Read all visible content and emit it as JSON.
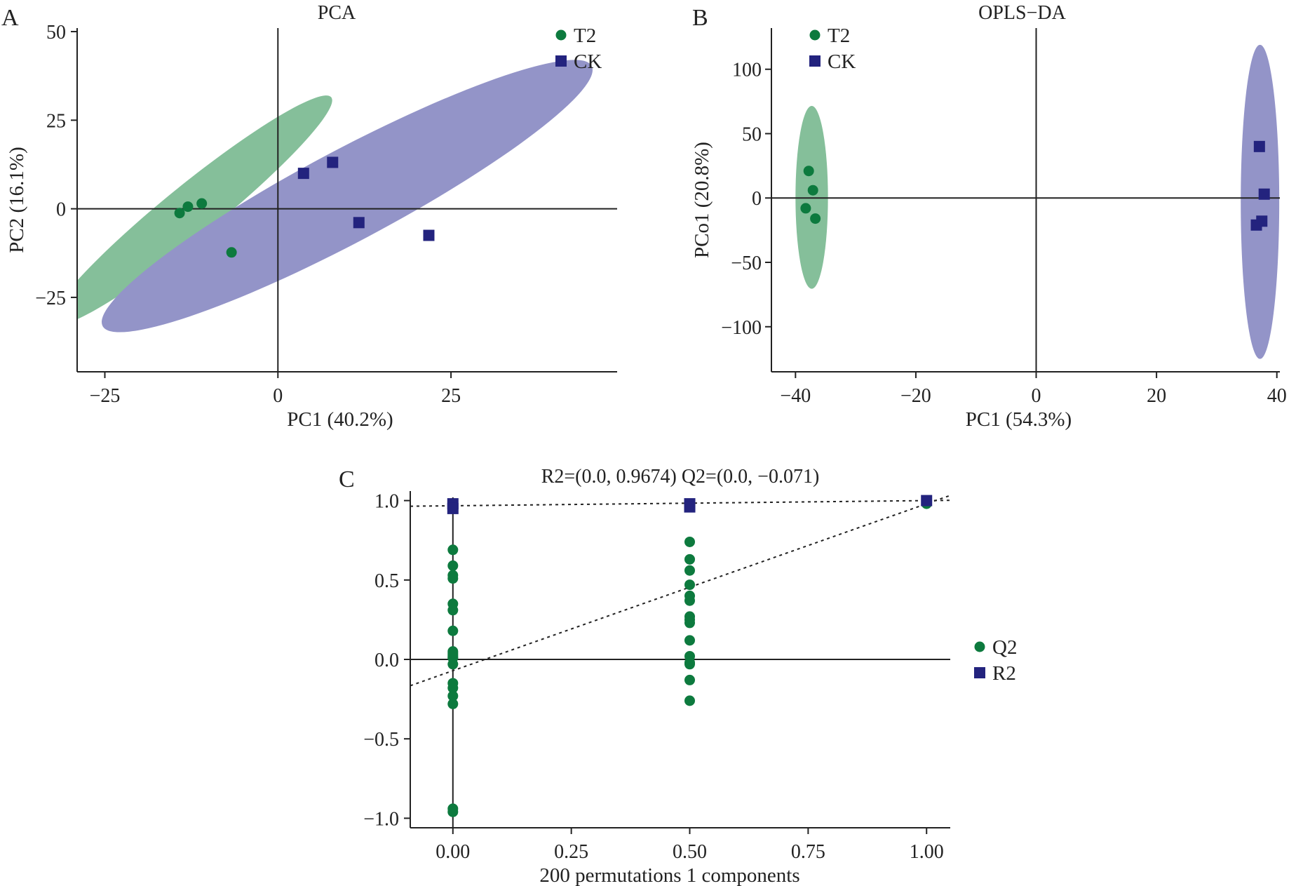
{
  "colors": {
    "t2": "#0d7a3e",
    "ck": "#23237e",
    "t2_ellipse": "#85bf9a",
    "ck_ellipse": "#9394c8"
  },
  "chart_data": [
    {
      "panel": "A",
      "type": "scatter",
      "title": "PCA",
      "xlabel": "PC1 (40.2%)",
      "ylabel": "PC2 (16.1%)",
      "xlim": [
        -29,
        49
      ],
      "ylim": [
        -46,
        51
      ],
      "xticks": [
        -25,
        0,
        25
      ],
      "yticks": [
        -25,
        0,
        25,
        50
      ],
      "zero_lines": true,
      "legend": "top-right",
      "series": [
        {
          "name": "T2",
          "marker": "circle",
          "color": "#0d7a3e",
          "x": [
            -14.2,
            -13,
            -11,
            -6.7
          ],
          "y": [
            -1.2,
            0.6,
            1.5,
            -12.3
          ]
        },
        {
          "name": "CK",
          "marker": "square",
          "color": "#23237e",
          "x": [
            3.7,
            7.9,
            11.7,
            21.8
          ],
          "y": [
            10,
            13.1,
            -3.9,
            -7.5
          ]
        }
      ],
      "confidence_ellipses": [
        {
          "group": "T2",
          "cx": -12.5,
          "cy": -0.5,
          "rx": 26,
          "ry": 7.3,
          "angle_deg": -39,
          "color": "#85bf9a"
        },
        {
          "group": "CK",
          "cx": 10,
          "cy": 3.6,
          "rx": 40,
          "ry": 12.9,
          "angle_deg": -28,
          "color": "#9394c8"
        }
      ]
    },
    {
      "panel": "B",
      "type": "scatter",
      "title": "OPLS−DA",
      "xlabel": "PC1 (54.3%)",
      "ylabel": "PCo1 (20.8%)",
      "xlim": [
        -44,
        40.5
      ],
      "ylim": [
        -135,
        132
      ],
      "xticks": [
        -40,
        -20,
        0,
        20,
        40
      ],
      "yticks": [
        -100,
        -50,
        0,
        50,
        100
      ],
      "zero_lines": true,
      "legend": "top-left",
      "series": [
        {
          "name": "T2",
          "marker": "circle",
          "color": "#0d7a3e",
          "x": [
            -37.8,
            -37.1,
            -38.3,
            -36.7
          ],
          "y": [
            21,
            6,
            -8,
            -16
          ]
        },
        {
          "name": "CK",
          "marker": "square",
          "color": "#23237e",
          "x": [
            37.1,
            37.9,
            37.5,
            36.6
          ],
          "y": [
            40,
            3,
            -18,
            -21
          ]
        }
      ],
      "confidence_ellipses": [
        {
          "group": "T2",
          "cx": -37.3,
          "cy": 0.5,
          "rx": 2.7,
          "ry": 71,
          "angle_deg": 0,
          "color": "#85bf9a"
        },
        {
          "group": "CK",
          "cx": 37.2,
          "cy": -3,
          "rx": 3.2,
          "ry": 122,
          "angle_deg": 0,
          "color": "#9394c8"
        }
      ]
    },
    {
      "panel": "C",
      "type": "scatter",
      "title": "",
      "annotation": "R2=(0.0, 0.9674)    Q2=(0.0, −0.071)",
      "xlabel": "200 permutations 1 components",
      "ylabel": "",
      "xlim": [
        -0.09,
        1.05
      ],
      "ylim": [
        -1.06,
        1.06
      ],
      "xticks": [
        "0.00",
        "0.25",
        "0.50",
        "0.75",
        "1.00"
      ],
      "yticks": [
        "−1.0",
        "−0.5",
        "0.0",
        "0.5",
        "1.0"
      ],
      "zero_lines": true,
      "legend": "right",
      "series": [
        {
          "name": "Q2",
          "marker": "circle",
          "color": "#0d7a3e",
          "x": [
            0,
            0,
            0,
            0,
            0,
            0,
            0,
            0,
            0,
            0,
            0,
            0,
            0,
            0,
            0,
            0,
            0,
            0,
            0,
            0,
            0.5,
            0.5,
            0.5,
            0.5,
            0.5,
            0.5,
            0.5,
            0.5,
            0.5,
            0.5,
            0.5,
            0.5,
            0.5,
            0.5,
            0.5,
            1
          ],
          "y": [
            0.69,
            0.59,
            0.53,
            0.51,
            0.35,
            0.31,
            0.18,
            0.05,
            0.03,
            0.01,
            -0.03,
            -0.15,
            -0.18,
            -0.23,
            -0.28,
            -0.94,
            -0.96,
            0.01,
            0.02,
            0.04,
            0.74,
            0.63,
            0.56,
            0.47,
            0.4,
            0.37,
            0.27,
            0.25,
            0.23,
            0.12,
            0.02,
            -0.03,
            -0.13,
            -0.26,
            -0.02,
            0.98
          ]
        },
        {
          "name": "R2",
          "marker": "square",
          "color": "#23237e",
          "x": [
            0,
            0,
            0.5,
            0.5,
            1
          ],
          "y": [
            0.98,
            0.95,
            0.98,
            0.96,
            1.0
          ]
        }
      ],
      "regression_lines": [
        {
          "name": "R2",
          "intercept": 0.9674,
          "slope": 0.0326
        },
        {
          "name": "Q2",
          "intercept": -0.071,
          "slope": 1.051
        }
      ]
    }
  ]
}
